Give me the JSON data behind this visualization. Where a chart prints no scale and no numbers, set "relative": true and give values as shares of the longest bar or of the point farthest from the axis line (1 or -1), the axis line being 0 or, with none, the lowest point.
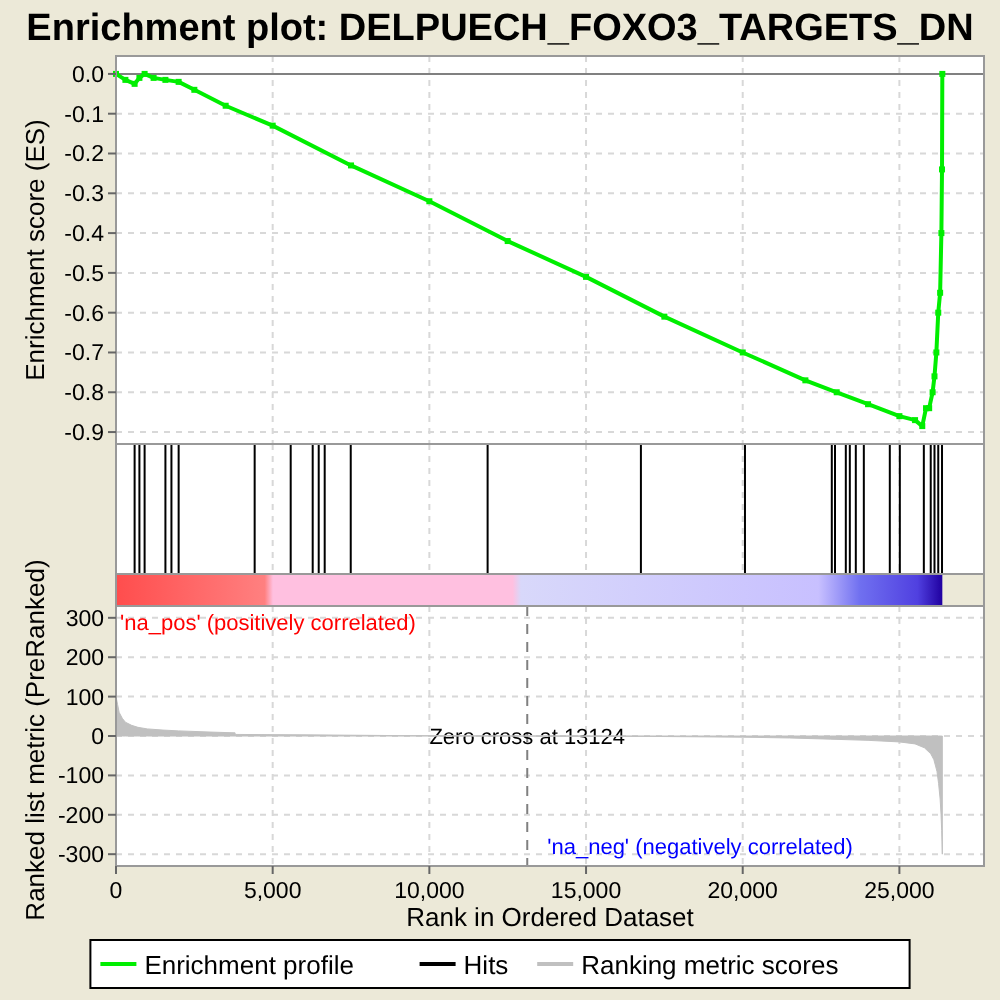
{
  "chart_data": [
    {
      "type": "line",
      "title": "Enrichment plot: DELPUECH_FOXO3_TARGETS_DN",
      "ylabel": "Enrichment score (ES)",
      "xlim": [
        0,
        27700
      ],
      "ylim": [
        -0.93,
        0.045
      ],
      "yticks": [
        {
          "value": 0,
          "label": "0.0"
        },
        -0.1,
        -0.2,
        -0.3,
        -0.4,
        -0.5,
        -0.6,
        -0.7,
        -0.8,
        -0.9
      ],
      "tick_labels": "y",
      "grid": true,
      "marker": "square",
      "ref_lines": [
        {
          "axis": "y",
          "value": 0,
          "color": "#808080"
        }
      ],
      "series": [
        {
          "name": "Enrichment profile",
          "color": "#00ee00",
          "x": [
            0,
            300,
            594,
            747,
            913,
            1200,
            1577,
            1999,
            2500,
            3500,
            5000,
            7500,
            10000,
            12500,
            15000,
            17500,
            20000,
            22000,
            23000,
            24000,
            25000,
            25500,
            25730,
            25850,
            25950,
            26060,
            26120,
            26180,
            26240,
            26300,
            26340,
            26360,
            26370
          ],
          "values": [
            0,
            -0.015,
            -0.025,
            -0.01,
            0,
            -0.01,
            -0.015,
            -0.02,
            -0.04,
            -0.08,
            -0.13,
            -0.23,
            -0.32,
            -0.42,
            -0.51,
            -0.61,
            -0.7,
            -0.77,
            -0.8,
            -0.83,
            -0.86,
            -0.87,
            -0.885,
            -0.84,
            -0.84,
            -0.8,
            -0.76,
            -0.7,
            -0.6,
            -0.55,
            -0.4,
            -0.24,
            0
          ]
        }
      ]
    },
    {
      "type": "bar",
      "relative": true,
      "xlim": [
        0,
        27700
      ],
      "tick_labels": false,
      "grid": "x",
      "series": [
        {
          "name": "Hits",
          "color": "#000000",
          "x": [
            594,
            747,
            913,
            1577,
            1769,
            1999,
            4425,
            5575,
            6277,
            6469,
            6660,
            7491,
            11859,
            16751,
            20072,
            22843,
            22945,
            23290,
            23418,
            23609,
            23865,
            24694,
            25014,
            25780,
            26000,
            26120,
            26240,
            26360
          ],
          "values": [
            1,
            1,
            1,
            1,
            1,
            1,
            1,
            1,
            1,
            1,
            1,
            1,
            1,
            1,
            1,
            1,
            1,
            1,
            1,
            1,
            1,
            1,
            1,
            1,
            1,
            1,
            1,
            1
          ]
        }
      ]
    },
    {
      "type": "area",
      "xlabel": "Rank in Ordered Dataset",
      "ylabel": "Ranked list metric (PreRanked)",
      "xlim": [
        0,
        27700
      ],
      "ylim": [
        -330,
        330
      ],
      "xticks": [
        {
          "value": 0,
          "label": "0"
        },
        {
          "value": 5000,
          "label": "5,000"
        },
        {
          "value": 10000,
          "label": "10,000"
        },
        {
          "value": 15000,
          "label": "15,000"
        },
        {
          "value": 20000,
          "label": "20,000"
        },
        {
          "value": 25000,
          "label": "25,000"
        }
      ],
      "yticks": [
        300,
        200,
        100,
        0,
        -100,
        -200,
        -300
      ],
      "grid": true,
      "legend": "bottom",
      "ref_lines": [
        {
          "axis": "x",
          "value": 13124,
          "label": "Zero cross at 13124",
          "color": "#808080",
          "line_style": "dashed"
        }
      ],
      "annotations": [
        "'na_pos' (positively correlated)",
        "'na_neg' (negatively correlated)"
      ],
      "series": [
        {
          "name": "Ranking metric scores",
          "color": "#c0c0c0",
          "x": [
            0,
            50,
            100,
            200,
            300,
            500,
            700,
            1000,
            1500,
            2000,
            3000,
            3800,
            3801,
            6000,
            9000,
            13124,
            17000,
            20000,
            21500,
            22800,
            24000,
            25000,
            25500,
            25800,
            26000,
            26100,
            26200,
            26250,
            26300,
            26330,
            26350,
            26370
          ],
          "values": [
            100,
            80,
            60,
            45,
            35,
            27,
            22,
            18,
            15,
            13,
            10,
            8,
            4,
            3,
            1,
            0,
            -1,
            -3,
            -5,
            -8,
            -11,
            -15,
            -20,
            -30,
            -45,
            -60,
            -90,
            -120,
            -160,
            -200,
            -240,
            -300
          ]
        }
      ]
    }
  ]
}
